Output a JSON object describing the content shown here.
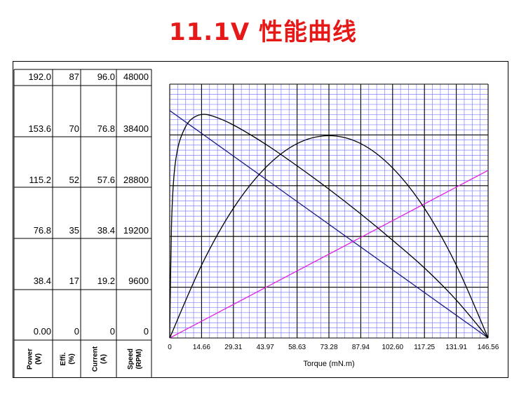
{
  "title": "11.1V 性能曲线",
  "chart_data": {
    "type": "line",
    "title": "11.1V 性能曲线",
    "xlabel": "Torque (mN.m)",
    "xlim": [
      0,
      146.56
    ],
    "x_ticks": [
      "0",
      "14.66",
      "29.31",
      "43.97",
      "58.63",
      "73.28",
      "87.94",
      "102.60",
      "117.25",
      "131.91",
      "146.56"
    ],
    "y_axes": [
      {
        "label": "Power (W)",
        "ticks": [
          "192.0",
          "153.6",
          "115.2",
          "76.8",
          "38.4",
          "0.00"
        ],
        "ylim": [
          0,
          192
        ]
      },
      {
        "label": "Effi. (%)",
        "ticks": [
          "87",
          "70",
          "52",
          "35",
          "17",
          "0"
        ],
        "ylim": [
          0,
          87
        ]
      },
      {
        "label": "Current (A)",
        "ticks": [
          "96.0",
          "76.8",
          "57.6",
          "38.4",
          "19.2",
          "0"
        ],
        "ylim": [
          0,
          96
        ]
      },
      {
        "label": "Speed (RPM)",
        "ticks": [
          "48000",
          "38400",
          "28800",
          "19200",
          "9600",
          "0"
        ],
        "ylim": [
          0,
          48000
        ]
      }
    ],
    "grid": true,
    "series": [
      {
        "color": "#1a1a80",
        "axis": "Speed (RPM)",
        "x": [
          0,
          146.56
        ],
        "y": [
          43000,
          0
        ]
      },
      {
        "color": "#e020e0",
        "axis": "Current (A)",
        "x": [
          0,
          146.56
        ],
        "y": [
          0,
          63.4
        ]
      },
      {
        "color": "#000000",
        "axis": "Power (W)",
        "x": [
          0,
          14.66,
          29.31,
          43.97,
          58.63,
          73.28,
          87.94,
          102.6,
          117.25,
          131.91,
          146.56
        ],
        "y": [
          0,
          55.1,
          98.1,
          128.6,
          147.0,
          153.0,
          147.0,
          128.6,
          98.1,
          55.1,
          0
        ]
      },
      {
        "color": "#000000",
        "axis": "Effi. (%)",
        "x": [
          0,
          0.8,
          2,
          4,
          7,
          10,
          14.66,
          20,
          29.31,
          43.97,
          58.63,
          73.28,
          87.94,
          102.6,
          117.25,
          131.91,
          146.56
        ],
        "y": [
          0,
          38,
          56,
          66,
          72,
          75,
          76.6,
          76,
          73,
          66.5,
          59,
          51,
          42.5,
          33.5,
          24,
          13,
          0
        ]
      }
    ]
  }
}
